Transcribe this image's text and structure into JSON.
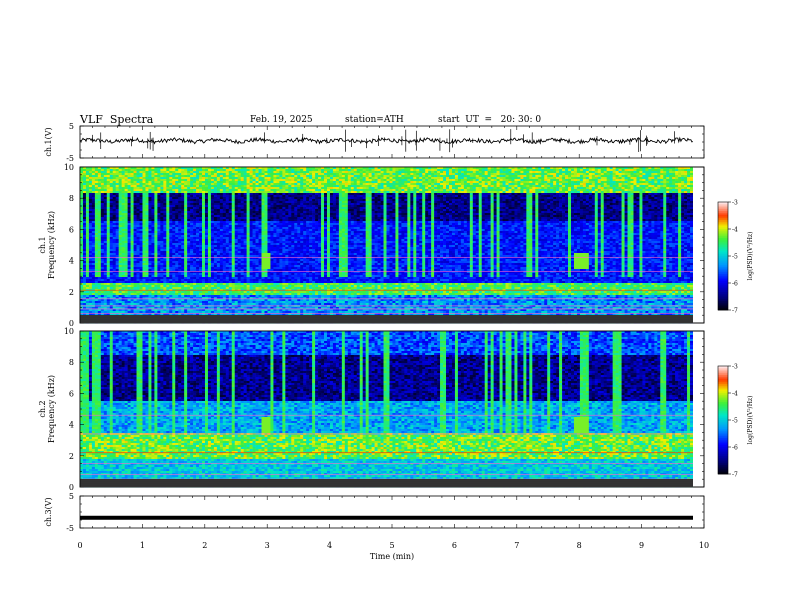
{
  "header": {
    "title": "VLF  Spectra",
    "date": "Feb. 19, 2025",
    "station": "station=ATH",
    "start": "start  UT  =   20: 30: 0"
  },
  "chart_data": [
    {
      "type": "line",
      "ylabel": "ch.1(V)",
      "xlim": [
        0,
        10
      ],
      "ylim": [
        -5,
        5
      ],
      "yticks": [
        "5",
        "-5"
      ],
      "series_level_v": 0.4
    },
    {
      "type": "heatmap",
      "ylabel": "ch.1\nFrequency (kHz)",
      "xlim": [
        0,
        10
      ],
      "ylim": [
        0,
        10
      ],
      "yticks": [
        "0",
        "2",
        "4",
        "6",
        "8",
        "10"
      ],
      "colorbar": {
        "label": "log(PSD)(V²/Hz)",
        "range": [
          -7,
          -3
        ],
        "ticks": [
          "-3",
          "-4",
          "-5",
          "-6",
          "-7"
        ]
      }
    },
    {
      "type": "heatmap",
      "ylabel": "ch.2\nFrequency (kHz)",
      "xlim": [
        0,
        10
      ],
      "ylim": [
        0,
        10
      ],
      "yticks": [
        "0",
        "2",
        "4",
        "6",
        "8",
        "10"
      ],
      "colorbar": {
        "label": "log(PSD)(V²/Hz)",
        "range": [
          -7,
          -3
        ],
        "ticks": [
          "-3",
          "-4",
          "-5",
          "-6",
          "-7"
        ]
      }
    },
    {
      "type": "line",
      "ylabel": "ch.3(V)",
      "xlim": [
        0,
        10
      ],
      "ylim": [
        -5,
        5
      ],
      "yticks": [
        "5",
        "-5"
      ],
      "xlabel": "Time  (min)",
      "xticks": [
        "0",
        "1",
        "2",
        "3",
        "4",
        "5",
        "6",
        "7",
        "8",
        "9",
        "10"
      ],
      "series_level_v": -1.8
    }
  ]
}
